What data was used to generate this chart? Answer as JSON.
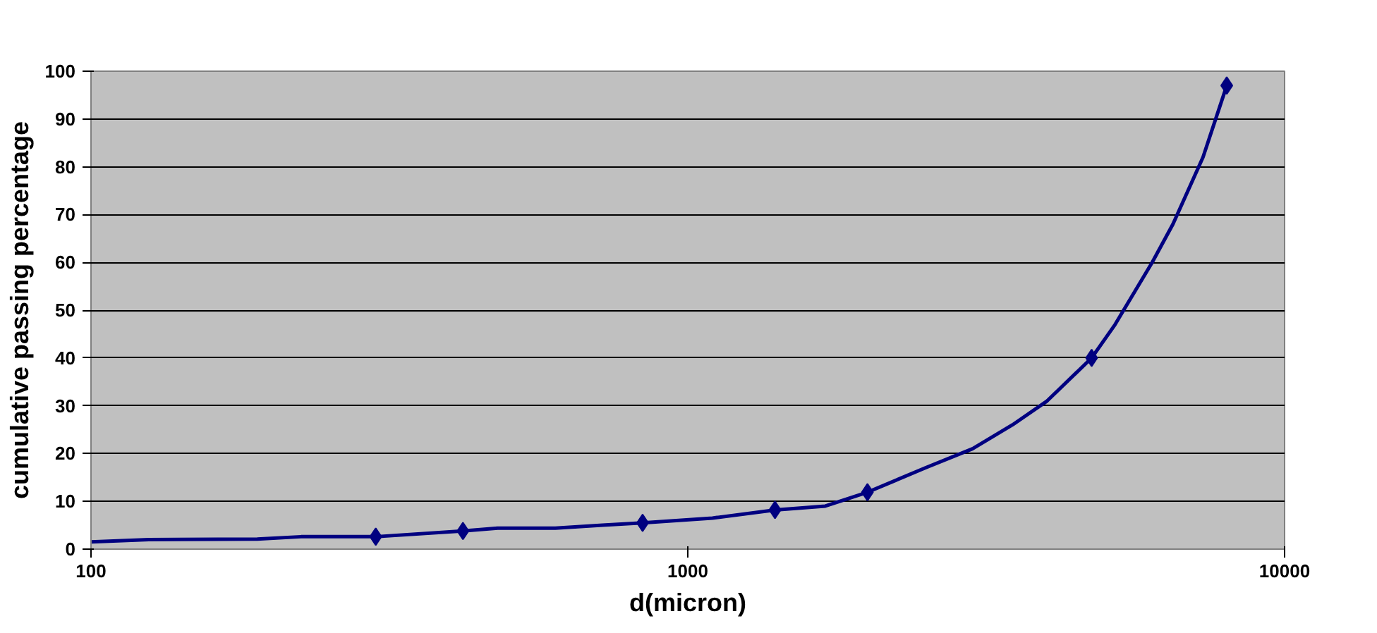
{
  "chart_data": {
    "type": "line",
    "xlabel": "d(micron)",
    "ylabel": "cumulative passing percentage",
    "log": "x",
    "xlim": [
      100,
      10000
    ],
    "xticks": [
      100,
      1000,
      10000
    ],
    "ylim": [
      0,
      100
    ],
    "yticks": [
      0,
      10,
      20,
      30,
      40,
      50,
      60,
      70,
      80,
      90,
      100
    ],
    "grid": "y",
    "series": [
      {
        "color": "#000080",
        "marker": "none",
        "x": [
          100,
          125,
          190,
          225,
          300,
          420,
          480,
          600,
          720,
          840,
          1100,
          1400,
          1700,
          2000,
          2500,
          3000,
          3500,
          4000,
          4750,
          5200,
          6000,
          6500,
          7300,
          8000
        ],
        "values": [
          1.5,
          2,
          2.1,
          2.6,
          2.6,
          3.8,
          4.4,
          4.4,
          5,
          5.5,
          6.5,
          8.2,
          9,
          11.9,
          17,
          21,
          26,
          31,
          40,
          47,
          60,
          68,
          82,
          97
        ]
      },
      {
        "type": "scatter",
        "color": "#000080",
        "marker": "diamond",
        "x": [
          300,
          420,
          840,
          1400,
          2000,
          4750,
          8000
        ],
        "values": [
          2.6,
          3.8,
          5.5,
          8.2,
          11.9,
          40,
          97
        ]
      }
    ]
  }
}
